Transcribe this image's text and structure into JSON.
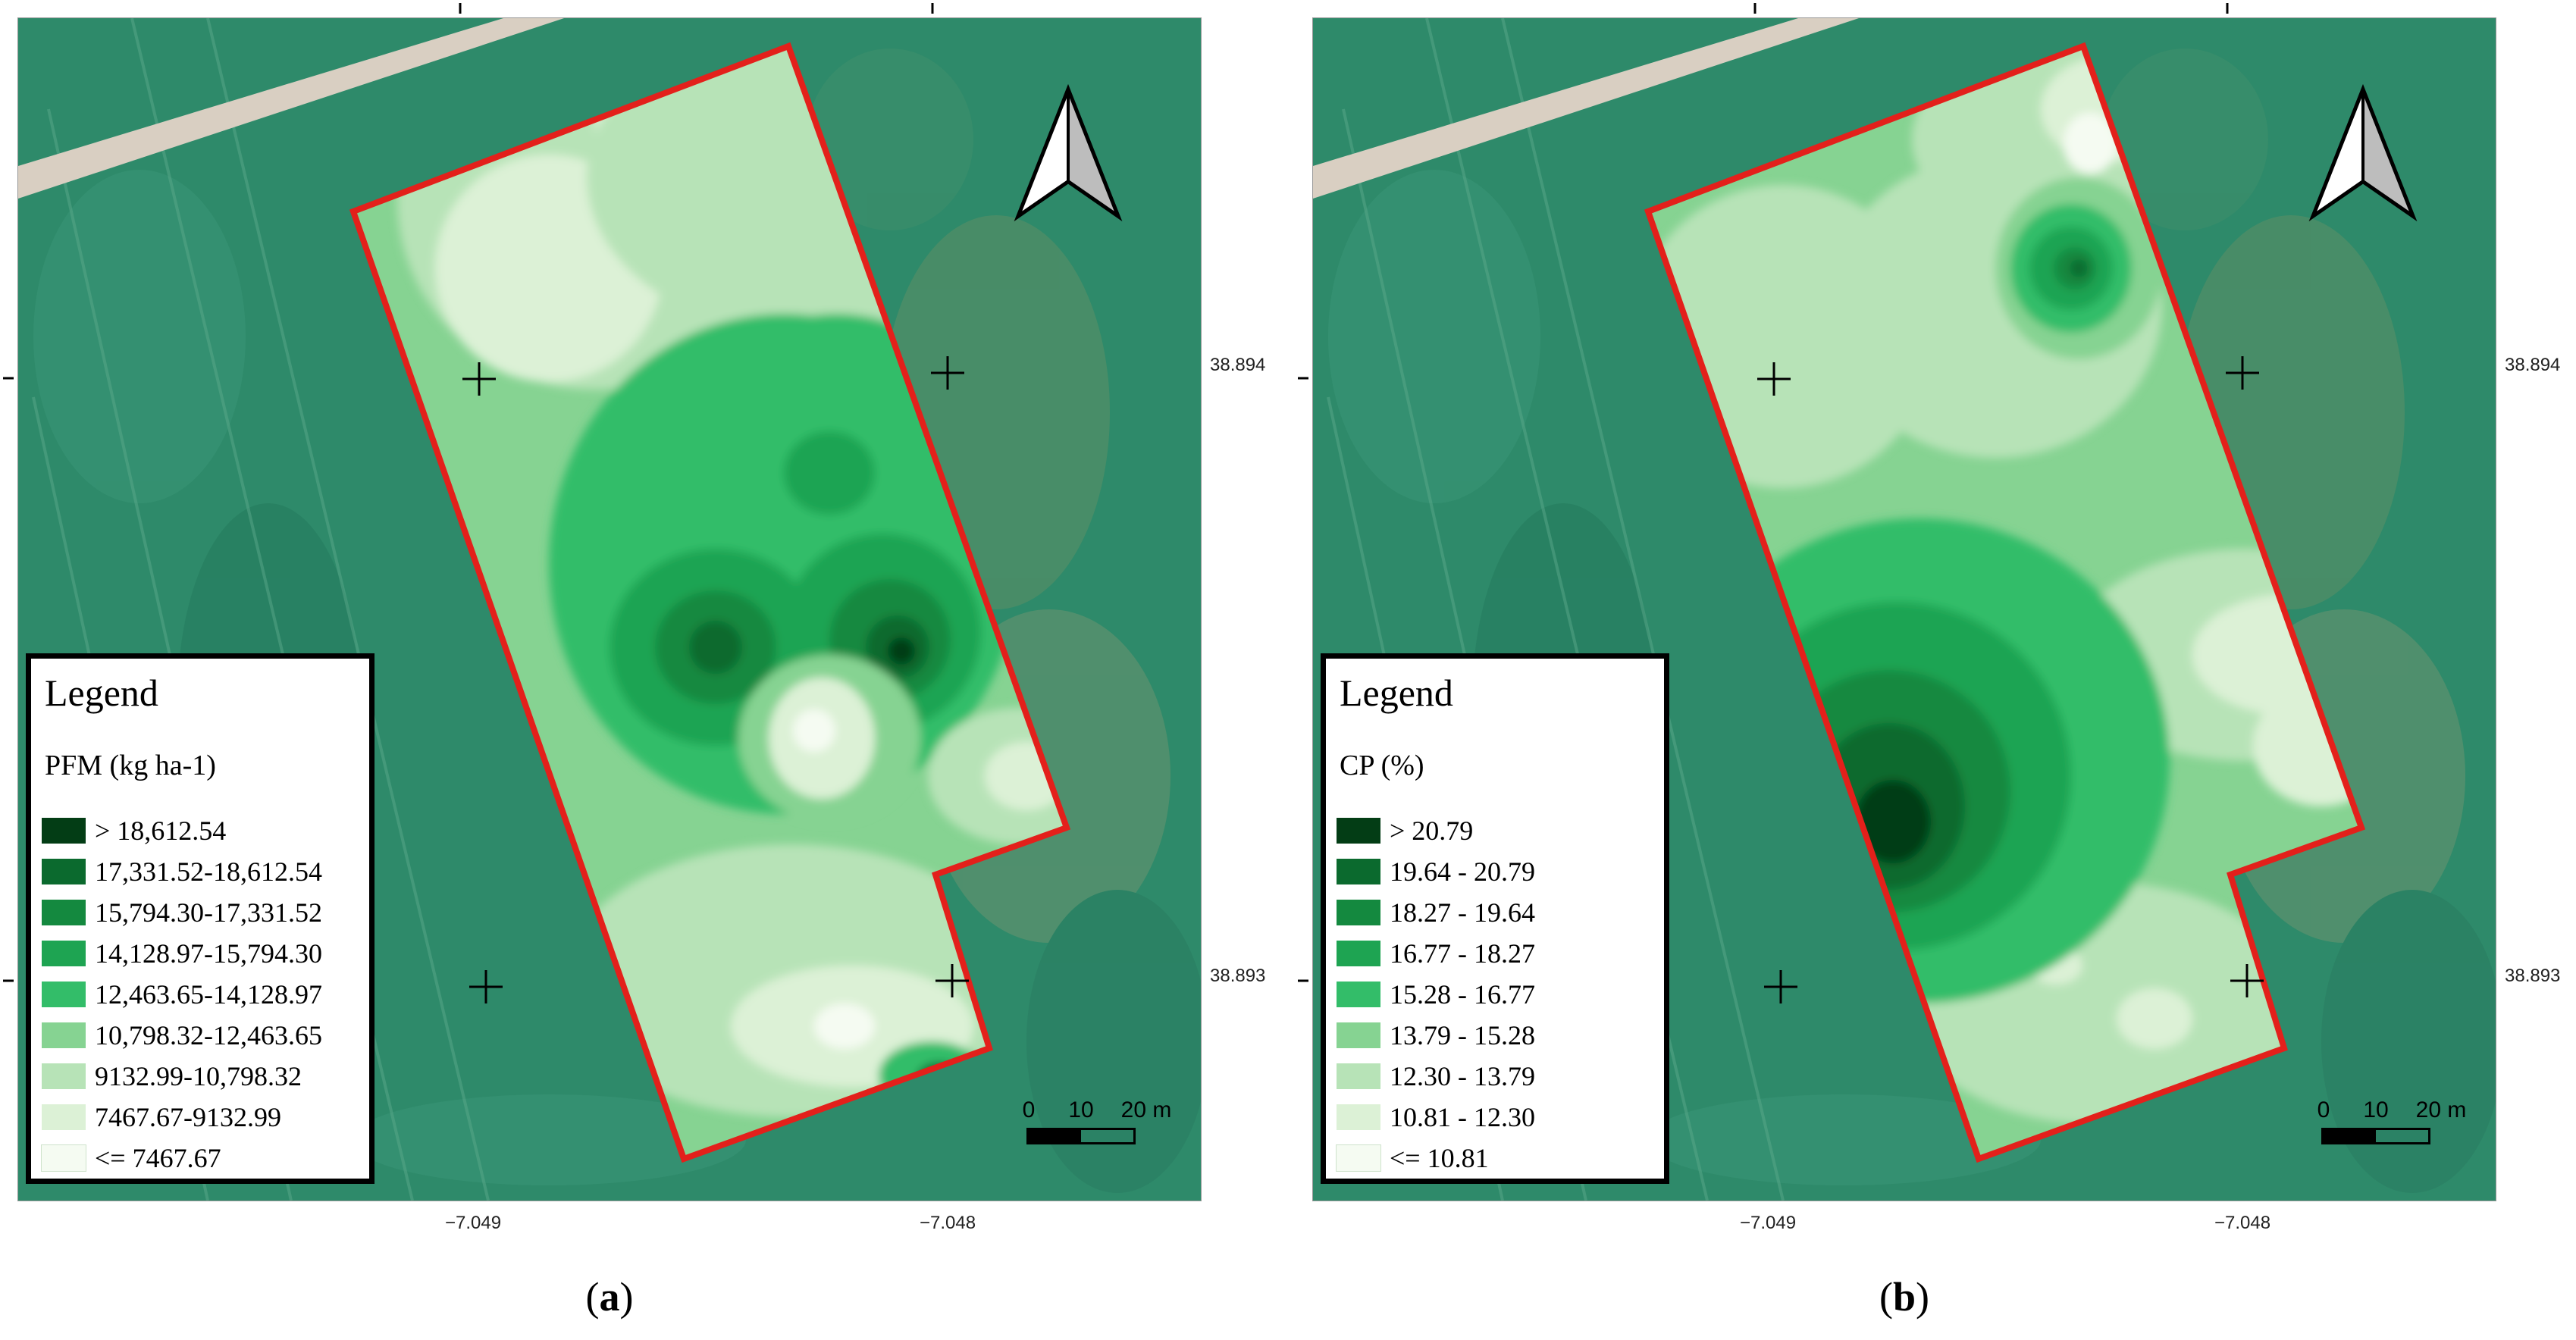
{
  "panels": {
    "a": {
      "caption_open": "(",
      "caption_letter": "a",
      "caption_close": ")",
      "legend_title": "Legend",
      "legend_subtitle": "PFM (kg ha-1)",
      "legend_items": [
        {
          "label": "> 18,612.54",
          "color": "#033d15"
        },
        {
          "label": "17,331.52-18,612.54",
          "color": "#0b6a2e"
        },
        {
          "label": "15,794.30-17,331.52",
          "color": "#14893f"
        },
        {
          "label": "14,128.97-15,794.30",
          "color": "#1ea452"
        },
        {
          "label": "12,463.65-14,128.97",
          "color": "#33bd69"
        },
        {
          "label": "10,798.32-12,463.65",
          "color": "#86d392"
        },
        {
          "label": "9132.99-10,798.32",
          "color": "#b7e3b7"
        },
        {
          "label": "7467.67-9132.99",
          "color": "#dcf1d6"
        },
        {
          "label": "<= 7467.67",
          "color": "#f5fbf2"
        }
      ],
      "lat_ticks": [
        "38.894",
        "38.893"
      ],
      "lon_ticks": [
        "−7.049",
        "−7.048"
      ],
      "scale_labels": [
        "0",
        "10",
        "20 m"
      ]
    },
    "b": {
      "caption_open": "(",
      "caption_letter": "b",
      "caption_close": ")",
      "legend_title": "Legend",
      "legend_subtitle": "CP (%)",
      "legend_items": [
        {
          "label": "> 20.79",
          "color": "#033d15"
        },
        {
          "label": "19.64 - 20.79",
          "color": "#0b6a2e"
        },
        {
          "label": "18.27 - 19.64",
          "color": "#14893f"
        },
        {
          "label": "16.77 - 18.27",
          "color": "#1ea452"
        },
        {
          "label": "15.28 - 16.77",
          "color": "#33bd69"
        },
        {
          "label": "13.79 - 15.28",
          "color": "#86d392"
        },
        {
          "label": "12.30 - 13.79",
          "color": "#b7e3b7"
        },
        {
          "label": "10.81 - 12.30",
          "color": "#dcf1d6"
        },
        {
          "label": "<= 10.81",
          "color": "#f5fbf2"
        }
      ],
      "lat_ticks": [
        "38.894",
        "38.893"
      ],
      "lon_ticks": [
        "−7.049",
        "−7.048"
      ],
      "scale_labels": [
        "0",
        "10",
        "20 m"
      ]
    }
  },
  "colors": {
    "field_boundary": "#e3201b",
    "imagery_base": "#2e8a6a",
    "road": "#d9cfc2"
  },
  "icons": {
    "north_arrow": "north-arrow-icon",
    "crosshair": "crosshair-icon"
  }
}
